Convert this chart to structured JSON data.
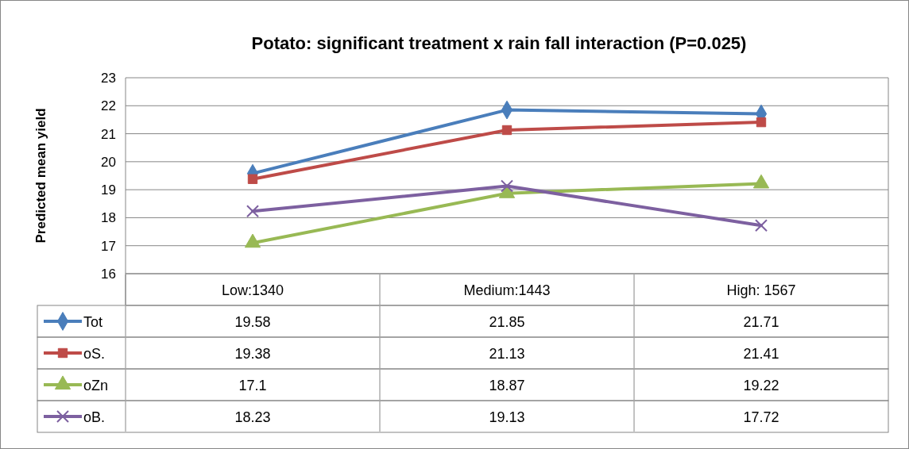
{
  "chart_data": {
    "type": "line",
    "title": "Potato: significant treatment x rain fall interaction (P=0.025)",
    "ylabel": "Predicted mean yield",
    "categories": [
      "Low:1340",
      "Medium:1443",
      "High: 1567"
    ],
    "ylim": [
      16,
      23
    ],
    "yticks": [
      16,
      17,
      18,
      19,
      20,
      21,
      22,
      23
    ],
    "grid": "y",
    "legend": "bottom",
    "data_labels": true,
    "line_style": "solid",
    "series": [
      {
        "name": "Tot",
        "color": "#4a7ebb",
        "marker": "diamond",
        "values": [
          19.58,
          21.85,
          21.71
        ]
      },
      {
        "name": "oS.",
        "color": "#be4b48",
        "marker": "square",
        "values": [
          19.38,
          21.13,
          21.41
        ]
      },
      {
        "name": "oZn",
        "color": "#98b954",
        "marker": "triangle",
        "values": [
          17.1,
          18.87,
          19.22
        ]
      },
      {
        "name": "oB.",
        "color": "#7d60a0",
        "marker": "cross",
        "values": [
          18.23,
          19.13,
          17.72
        ]
      }
    ]
  }
}
